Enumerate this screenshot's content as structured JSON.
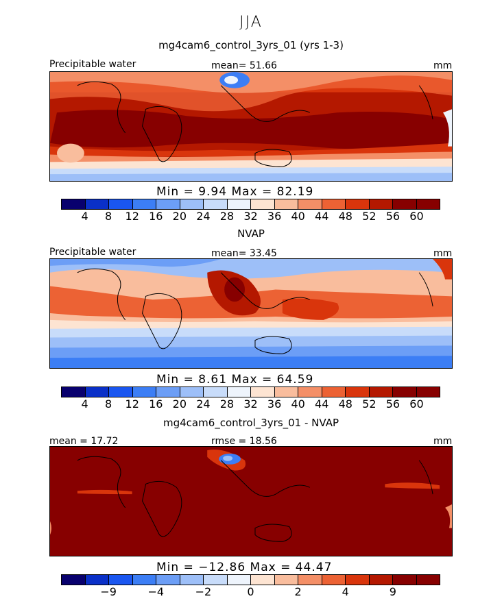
{
  "season": "JJA",
  "colors": [
    "#08006e",
    "#0a30c8",
    "#1a56f0",
    "#3c7ef5",
    "#6c9ef6",
    "#9dbff8",
    "#c8dcfa",
    "#eef4fc",
    "#fde4d2",
    "#f9bd9d",
    "#f48f67",
    "#ec6234",
    "#d9350c",
    "#b41800",
    "#870000"
  ],
  "panels": [
    {
      "title": "mg4cam6_control_3yrs_01 (yrs 1-3)",
      "left_label": "Precipitable water",
      "center_label": "mean=  51.66",
      "right_label": "mm",
      "minmax": "Min =    9.94  Max =   82.19",
      "ticks": [
        "4",
        "8",
        "12",
        "16",
        "20",
        "24",
        "28",
        "32",
        "36",
        "40",
        "44",
        "48",
        "52",
        "56",
        "60"
      ]
    },
    {
      "title": "NVAP",
      "left_label": "Precipitable water",
      "center_label": "mean=  33.45",
      "right_label": "mm",
      "minmax": "Min =    8.61  Max =   64.59",
      "ticks": [
        "4",
        "8",
        "12",
        "16",
        "20",
        "24",
        "28",
        "32",
        "36",
        "40",
        "44",
        "48",
        "52",
        "56",
        "60"
      ]
    },
    {
      "title": "mg4cam6_control_3yrs_01 - NVAP",
      "left_label": "mean =  17.72",
      "center_label": "rmse =  18.56",
      "right_label": "mm",
      "minmax": "Min = −12.86  Max =   44.47",
      "ticks": [
        "−9",
        "−4",
        "−2",
        "0",
        "2",
        "4",
        "9"
      ]
    }
  ]
}
